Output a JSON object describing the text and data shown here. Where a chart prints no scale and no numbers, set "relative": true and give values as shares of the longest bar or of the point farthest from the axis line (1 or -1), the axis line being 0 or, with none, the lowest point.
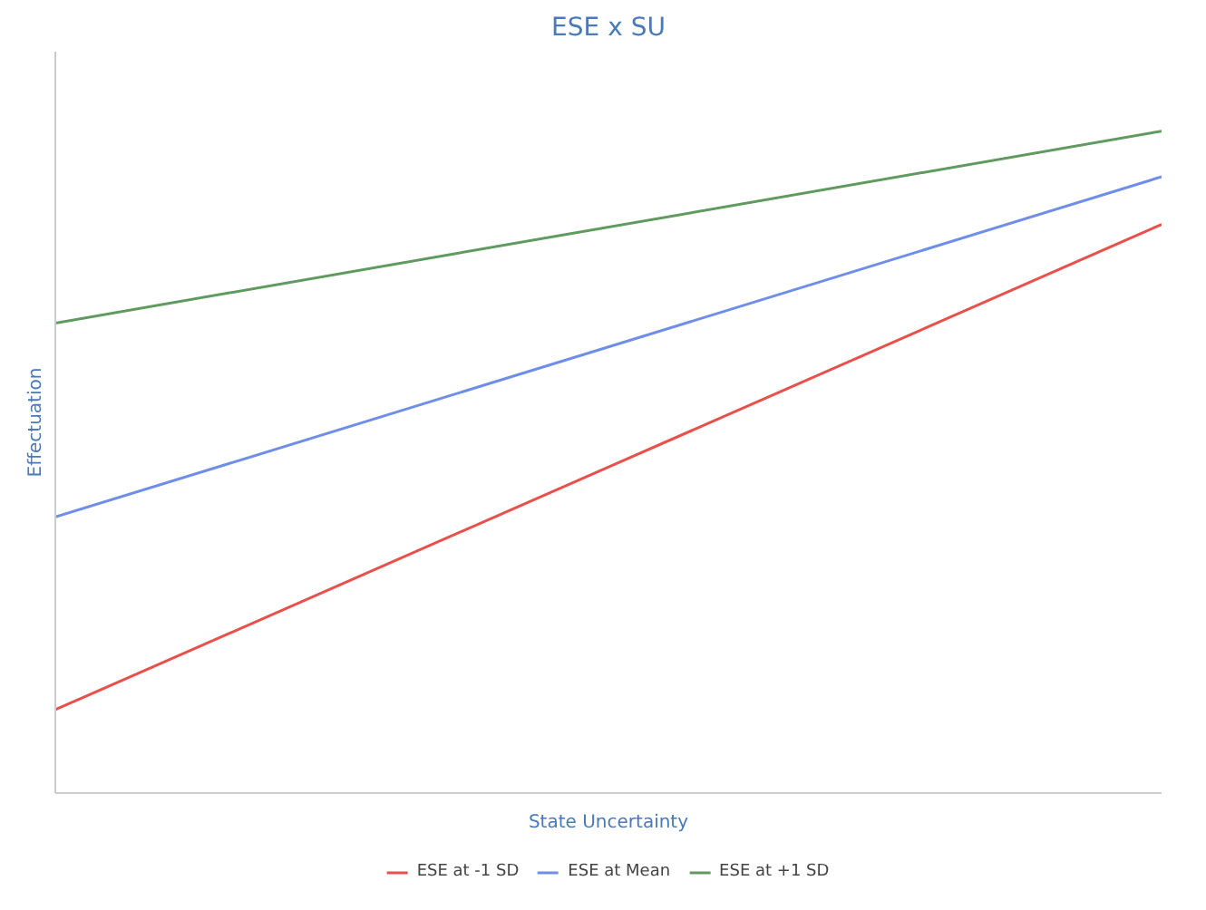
{
  "chart_data": {
    "type": "line",
    "title": "ESE x SU",
    "xlabel": "State Uncertainty",
    "ylabel": "Effectuation",
    "relative": true,
    "categories": [
      null,
      null
    ],
    "series": [
      {
        "name": "ESE at -1 SD",
        "color": "#e8514b",
        "values": [
          0.126,
          0.859
        ]
      },
      {
        "name": "ESE at Mean",
        "color": "#6e8ee8",
        "values": [
          0.417,
          0.931
        ]
      },
      {
        "name": "ESE at +1 SD",
        "color": "#5f9a5f",
        "values": [
          0.71,
          1
        ]
      }
    ],
    "legend": "bottom",
    "marker": "none",
    "line_style": "solid"
  }
}
